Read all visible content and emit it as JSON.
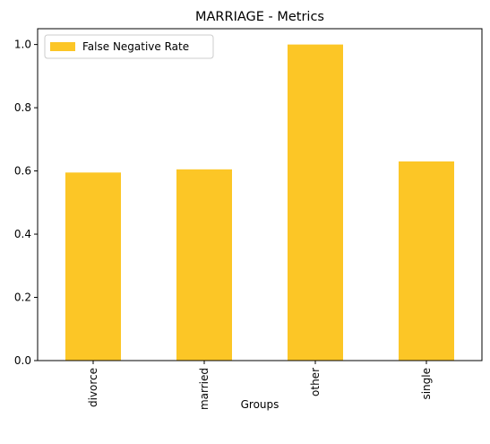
{
  "chart_data": {
    "type": "bar",
    "title": "MARRIAGE - Metrics",
    "xlabel": "Groups",
    "ylabel": "",
    "categories": [
      "divorce",
      "married",
      "other",
      "single"
    ],
    "series": [
      {
        "name": "False Negative Rate",
        "values": [
          0.595,
          0.605,
          1.0,
          0.63
        ],
        "color": "#fcc626"
      }
    ],
    "ylim": [
      0,
      1.05
    ],
    "yticks": [
      "0.0",
      "0.2",
      "0.4",
      "0.6",
      "0.8",
      "1.0"
    ],
    "grid": false,
    "legend_position": "top-left",
    "x_tick_rotation": "vertical"
  }
}
